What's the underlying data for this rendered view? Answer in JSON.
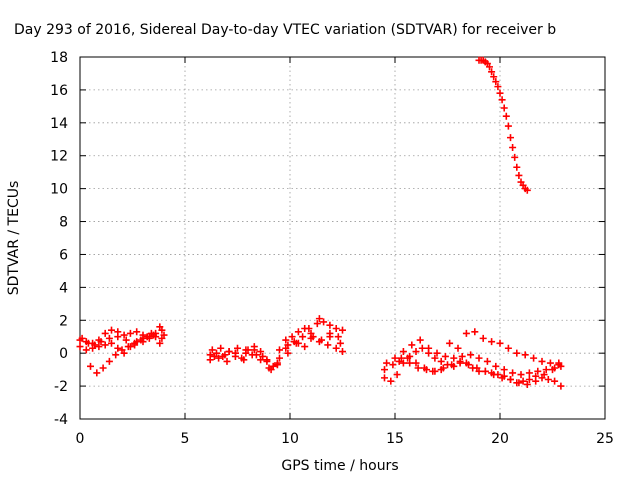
{
  "chart_data": {
    "type": "scatter",
    "title": "Day 293 of 2016, Sidereal Day-to-day VTEC variation (SDTVAR) for receiver b",
    "xlabel": "GPS time / hours",
    "ylabel": "SDTVAR / TECUs",
    "xlim": [
      0,
      25
    ],
    "ylim": [
      -4,
      18
    ],
    "x_ticks": [
      "0",
      "5",
      "10",
      "15",
      "20",
      "25"
    ],
    "y_ticks": [
      "-4",
      "-2",
      "0",
      "2",
      "4",
      "6",
      "8",
      "10",
      "12",
      "14",
      "16",
      "18"
    ],
    "grid": true,
    "marker": "plus",
    "color": "#ff0000",
    "series": [
      {
        "x": [
          0.0,
          0.3,
          0.6,
          0.9,
          1.2,
          1.5,
          1.8,
          2.1,
          2.4,
          2.7,
          3.0,
          3.3,
          3.6,
          3.9,
          0.0,
          0.3,
          0.6,
          0.9,
          1.2,
          1.5,
          1.8,
          2.1,
          2.4,
          2.7,
          3.0,
          3.3,
          3.6,
          3.9,
          0.5,
          0.8,
          1.1,
          1.4,
          1.7,
          2.0,
          2.3,
          2.6,
          2.9,
          3.2,
          3.5,
          3.8,
          0.1,
          0.4,
          0.7,
          1.0,
          1.4,
          1.8,
          2.2,
          2.6,
          3.0,
          3.4,
          3.8,
          4.0
        ],
        "y": [
          0.8,
          0.7,
          0.6,
          0.8,
          1.2,
          1.4,
          1.3,
          1.1,
          1.2,
          1.3,
          1.1,
          1.0,
          1.2,
          1.4,
          0.4,
          0.2,
          0.3,
          0.4,
          0.5,
          0.6,
          0.3,
          0.0,
          0.4,
          0.7,
          0.9,
          0.9,
          1.0,
          0.9,
          -0.8,
          -1.2,
          -0.9,
          -0.5,
          -0.1,
          0.2,
          0.4,
          0.6,
          0.8,
          1.0,
          1.1,
          0.6,
          0.9,
          0.6,
          0.5,
          0.7,
          0.9,
          1.0,
          0.8,
          0.5,
          0.7,
          1.2,
          1.6,
          1.1
        ]
      },
      {
        "x": [
          6.2,
          6.5,
          6.8,
          7.1,
          7.4,
          7.7,
          8.0,
          8.3,
          8.6,
          8.9,
          9.2,
          9.5,
          9.8,
          10.1,
          10.4,
          10.7,
          11.0,
          11.3,
          11.6,
          11.9,
          12.2,
          12.5,
          6.2,
          6.6,
          7.0,
          7.4,
          7.8,
          8.2,
          8.6,
          9.0,
          9.4,
          9.8,
          10.2,
          10.6,
          11.0,
          11.4,
          11.8,
          12.2,
          12.5,
          6.3,
          6.7,
          7.1,
          7.5,
          7.9,
          8.3,
          8.7,
          9.1,
          9.5,
          9.9,
          10.3,
          10.7,
          11.1,
          11.5,
          11.9,
          12.3,
          6.4,
          6.9,
          7.4,
          7.9,
          8.4,
          8.9,
          9.4,
          9.9,
          10.4,
          10.9,
          11.4,
          11.9,
          12.4
        ],
        "y": [
          -0.1,
          0.0,
          -0.2,
          0.1,
          0.0,
          -0.3,
          0.2,
          0.4,
          0.1,
          -0.5,
          -0.8,
          0.2,
          0.8,
          1.0,
          1.3,
          1.5,
          1.2,
          1.8,
          1.9,
          1.7,
          1.5,
          1.4,
          -0.4,
          -0.3,
          -0.5,
          -0.2,
          -0.4,
          -0.1,
          -0.4,
          -0.9,
          -0.6,
          0.3,
          0.7,
          1.0,
          0.9,
          0.7,
          0.5,
          0.3,
          0.1,
          0.2,
          0.3,
          0.1,
          0.3,
          0.0,
          0.2,
          -0.2,
          -1.0,
          -0.3,
          0.5,
          0.6,
          0.4,
          1.0,
          0.8,
          1.2,
          1.0,
          -0.2,
          -0.1,
          0.0,
          0.2,
          -0.1,
          -0.4,
          -0.7,
          0.0,
          0.6,
          1.5,
          2.1,
          1.0,
          0.6
        ]
      },
      {
        "x": [
          14.5,
          14.8,
          15.1,
          15.4,
          15.7,
          16.0,
          16.3,
          16.6,
          16.9,
          17.2,
          17.5,
          17.8,
          18.1,
          18.4,
          18.7,
          19.0,
          19.3,
          19.6,
          19.9,
          20.2,
          20.5,
          20.8,
          21.1,
          21.4,
          21.7,
          22.0,
          22.3,
          22.6,
          22.9,
          14.6,
          15.0,
          15.4,
          15.8,
          16.2,
          16.6,
          17.0,
          17.4,
          17.8,
          18.2,
          18.6,
          19.0,
          19.4,
          19.8,
          20.2,
          20.6,
          21.0,
          21.4,
          21.8,
          22.2,
          22.6,
          22.9,
          14.5,
          14.9,
          15.3,
          15.7,
          16.1,
          16.5,
          16.9,
          17.3,
          17.7,
          18.1,
          18.5,
          18.9,
          19.3,
          19.7,
          20.1,
          20.5,
          20.9,
          21.3,
          21.7,
          22.1,
          22.5,
          22.8,
          15.2,
          15.6,
          16.0,
          16.4,
          16.8,
          17.2,
          17.6,
          18.0,
          18.4,
          18.8,
          19.2,
          19.6,
          20.0,
          20.4,
          20.8,
          21.2,
          21.6,
          22.0,
          22.4,
          22.8
        ],
        "y": [
          -1.5,
          -1.7,
          -1.3,
          -0.6,
          -0.2,
          0.1,
          0.3,
          0.0,
          -0.3,
          -0.5,
          -0.7,
          -0.8,
          -0.6,
          -0.6,
          -0.9,
          -1.1,
          -1.1,
          -1.2,
          -1.3,
          -1.4,
          -1.6,
          -1.8,
          -1.7,
          -1.6,
          -1.4,
          -1.5,
          -1.6,
          -1.7,
          -2.0,
          -0.6,
          -0.3,
          0.1,
          0.5,
          0.8,
          0.3,
          0.0,
          -0.2,
          -0.3,
          -0.2,
          -0.1,
          -0.3,
          -0.5,
          -0.8,
          -1.0,
          -1.2,
          -1.3,
          -1.2,
          -1.1,
          -1.0,
          -0.9,
          -0.8,
          -1.0,
          -0.7,
          -0.3,
          -0.6,
          -0.9,
          -1.0,
          -1.1,
          -0.9,
          -0.7,
          -0.5,
          -0.7,
          -0.9,
          -1.1,
          -1.3,
          -1.5,
          -1.6,
          -1.8,
          -1.9,
          -1.7,
          -1.3,
          -1.0,
          -0.7,
          -0.5,
          -0.3,
          -0.6,
          -0.9,
          -1.1,
          -1.0,
          0.6,
          0.3,
          1.2,
          1.3,
          0.9,
          0.7,
          0.6,
          0.3,
          0.0,
          -0.1,
          -0.3,
          -0.5,
          -0.6,
          -0.6
        ]
      },
      {
        "x": [
          19.0,
          19.1,
          19.2,
          19.3,
          19.4,
          19.5,
          19.6,
          19.7,
          19.8,
          19.9,
          20.0,
          20.1,
          20.2,
          20.3,
          20.4,
          20.5,
          20.6,
          20.7,
          20.8,
          20.9,
          21.0,
          21.1,
          21.2,
          21.3
        ],
        "y": [
          17.8,
          17.8,
          17.8,
          17.7,
          17.6,
          17.4,
          17.1,
          16.8,
          16.5,
          16.2,
          15.8,
          15.4,
          14.9,
          14.4,
          13.8,
          13.1,
          12.5,
          11.9,
          11.3,
          10.8,
          10.4,
          10.2,
          10.0,
          9.9
        ]
      }
    ]
  }
}
